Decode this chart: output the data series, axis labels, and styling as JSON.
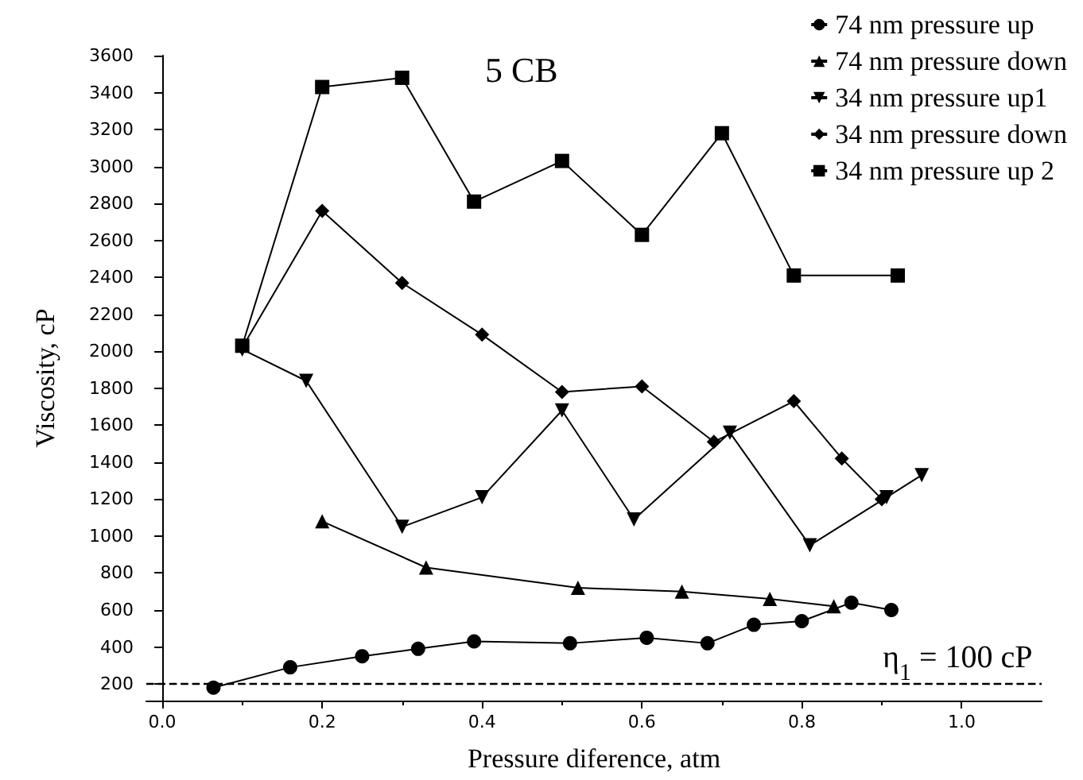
{
  "chart_data": {
    "type": "line",
    "title": "5 CB",
    "xlabel": "Pressure diference, atm",
    "ylabel": "Viscosity, cP",
    "xlim": [
      -0.02,
      1.1
    ],
    "xticks": [
      {
        "value": 0,
        "label": "0.0"
      },
      {
        "value": 0.2,
        "label": "0.2"
      },
      {
        "value": 0.4,
        "label": "0.4"
      },
      {
        "value": 0.6,
        "label": "0.6"
      },
      {
        "value": 0.8,
        "label": "0.8"
      },
      {
        "value": 1,
        "label": "1.0"
      }
    ],
    "ylim": [
      110,
      3600
    ],
    "yticks": [
      200,
      400,
      600,
      800,
      1000,
      1200,
      1400,
      1600,
      1800,
      2000,
      2200,
      2400,
      2600,
      2800,
      3000,
      3200,
      3400,
      3600
    ],
    "grid": false,
    "legend": "top right",
    "line_style": "solid",
    "series": [
      {
        "name": "74 nm pressure up",
        "color": "#000000",
        "marker": "circle",
        "x": [
          0.064,
          0.16,
          0.25,
          0.32,
          0.39,
          0.51,
          0.606,
          0.682,
          0.74,
          0.8,
          0.862,
          0.912
        ],
        "values": [
          180,
          290,
          350,
          390,
          430,
          420,
          450,
          420,
          520,
          540,
          640,
          600
        ]
      },
      {
        "name": "74 nm pressure down",
        "color": "#000000",
        "marker": "triangle",
        "x": [
          0.2,
          0.33,
          0.52,
          0.65,
          0.76,
          0.84
        ],
        "values": [
          1080,
          830,
          720,
          700,
          660,
          620
        ]
      },
      {
        "name": "34 nm pressure up1",
        "color": "#000000",
        "marker": "triangle",
        "x": [
          0.1,
          0.18,
          0.3,
          0.4,
          0.5,
          0.59,
          0.71,
          0.81,
          0.906,
          0.95
        ],
        "values": [
          2010,
          1840,
          1050,
          1210,
          1680,
          1090,
          1560,
          950,
          1210,
          1330
        ]
      },
      {
        "name": "34 nm pressure down",
        "color": "#000000",
        "marker": "diamond",
        "x": [
          0.1,
          0.2,
          0.3,
          0.4,
          0.5,
          0.6,
          0.69,
          0.79,
          0.85,
          0.9
        ],
        "values": [
          2020,
          2760,
          2370,
          2090,
          1780,
          1810,
          1510,
          1730,
          1420,
          1200
        ]
      },
      {
        "name": "34 nm pressure up 2",
        "color": "#000000",
        "marker": "square",
        "x": [
          0.1,
          0.2,
          0.3,
          0.39,
          0.5,
          0.6,
          0.7,
          0.79,
          0.92
        ],
        "values": [
          2030,
          3430,
          3480,
          2810,
          3030,
          2630,
          3180,
          2410,
          2410
        ]
      }
    ],
    "ref_lines": [
      {
        "axis": "y",
        "value": 200,
        "line_style": "dashed",
        "color": "#000000"
      }
    ],
    "annotations": [
      "η$_{1}$ = 100 cP"
    ]
  }
}
